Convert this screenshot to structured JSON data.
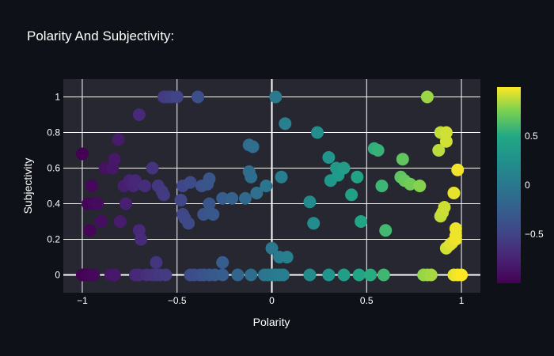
{
  "chart_data": {
    "type": "scatter",
    "title": "Polarity And Subjectivity:",
    "xlabel": "Polarity",
    "ylabel": "Subjectivity",
    "xlim": [
      -1.1,
      1.1
    ],
    "ylim": [
      -0.1,
      1.1
    ],
    "x_ticks": [
      -1,
      -0.5,
      0,
      0.5,
      1
    ],
    "x_tick_labels": [
      "−1",
      "−0.5",
      "0",
      "0.5",
      "1"
    ],
    "y_ticks": [
      0,
      0.2,
      0.4,
      0.6,
      0.8,
      1
    ],
    "y_tick_labels": [
      "0",
      "0.2",
      "0.4",
      "0.6",
      "0.8",
      "1"
    ],
    "grid": true,
    "colorscale": "viridis",
    "colorbar": {
      "range": [
        -1,
        1
      ],
      "ticks": [
        0.5,
        0,
        -0.5
      ],
      "tick_labels": [
        "0.5",
        "0",
        "−0.5"
      ]
    },
    "colors": {
      "page_bg": "#0e1117",
      "plot_bg": "#262730",
      "grid": "#ffffff",
      "text": "#ffffff"
    },
    "points": [
      [
        -1.0,
        0.68
      ],
      [
        -0.97,
        0.4
      ],
      [
        -0.96,
        0.25
      ],
      [
        -0.95,
        0.5
      ],
      [
        -0.94,
        0.4
      ],
      [
        -0.92,
        0.4
      ],
      [
        -0.9,
        0.3
      ],
      [
        -0.88,
        0.6
      ],
      [
        -0.84,
        0.6
      ],
      [
        -0.83,
        0.65
      ],
      [
        -0.81,
        0.76
      ],
      [
        -0.8,
        0.3
      ],
      [
        -0.78,
        0.5
      ],
      [
        -0.77,
        0.4
      ],
      [
        -0.75,
        0.53
      ],
      [
        -0.73,
        0.5
      ],
      [
        -0.72,
        0.53
      ],
      [
        -0.7,
        0.9
      ],
      [
        -0.7,
        0.25
      ],
      [
        -0.69,
        0.2
      ],
      [
        -0.67,
        0.5
      ],
      [
        -0.63,
        0.6
      ],
      [
        -0.61,
        0.07
      ],
      [
        -0.6,
        0.5
      ],
      [
        -0.58,
        0.47
      ],
      [
        -0.57,
        0.45
      ],
      [
        -0.57,
        1.0
      ],
      [
        -0.55,
        1.0
      ],
      [
        -0.53,
        1.0
      ],
      [
        -0.5,
        1.0
      ],
      [
        -0.48,
        0.42
      ],
      [
        -0.47,
        0.5
      ],
      [
        -0.47,
        0.34
      ],
      [
        -0.46,
        0.32
      ],
      [
        -0.44,
        0.29
      ],
      [
        -0.43,
        0.52
      ],
      [
        -0.39,
        1.0
      ],
      [
        -0.37,
        0.5
      ],
      [
        -0.36,
        0.34
      ],
      [
        -0.34,
        0.51
      ],
      [
        -0.33,
        0.35
      ],
      [
        -0.33,
        0.4
      ],
      [
        -0.33,
        0.54
      ],
      [
        -0.31,
        0.34
      ],
      [
        -0.26,
        0.07
      ],
      [
        -0.26,
        0.43
      ],
      [
        -0.21,
        0.43
      ],
      [
        -0.14,
        0.43
      ],
      [
        -0.08,
        0.46
      ],
      [
        -0.12,
        0.58
      ],
      [
        -0.12,
        0.73
      ],
      [
        -0.11,
        0.55
      ],
      [
        -0.1,
        0.72
      ],
      [
        -0.03,
        0.5
      ],
      [
        0.0,
        0.15
      ],
      [
        0.02,
        1.0
      ],
      [
        0.04,
        0.1
      ],
      [
        0.05,
        0.55
      ],
      [
        0.07,
        0.85
      ],
      [
        0.08,
        0.1
      ],
      [
        0.2,
        0.41
      ],
      [
        0.22,
        0.29
      ],
      [
        0.24,
        0.8
      ],
      [
        0.3,
        0.66
      ],
      [
        0.31,
        0.53
      ],
      [
        0.34,
        0.6
      ],
      [
        0.35,
        0.56
      ],
      [
        0.38,
        0.6
      ],
      [
        0.42,
        0.45
      ],
      [
        0.45,
        0.55
      ],
      [
        0.47,
        0.3
      ],
      [
        0.54,
        0.71
      ],
      [
        0.56,
        0.7
      ],
      [
        0.58,
        0.5
      ],
      [
        0.6,
        0.25
      ],
      [
        0.68,
        0.55
      ],
      [
        0.69,
        0.65
      ],
      [
        0.7,
        0.53
      ],
      [
        0.73,
        0.51
      ],
      [
        0.78,
        0.5
      ],
      [
        0.82,
        1.0
      ],
      [
        0.88,
        0.7
      ],
      [
        0.89,
        0.8
      ],
      [
        0.89,
        0.33
      ],
      [
        0.9,
        0.35
      ],
      [
        0.91,
        0.38
      ],
      [
        0.92,
        0.75
      ],
      [
        0.92,
        0.8
      ],
      [
        0.92,
        0.15
      ],
      [
        0.94,
        0.17
      ],
      [
        0.95,
        0.18
      ],
      [
        0.96,
        0.46
      ],
      [
        0.97,
        0.2
      ],
      [
        0.97,
        0.22
      ],
      [
        0.97,
        0.26
      ],
      [
        0.98,
        0.59
      ],
      [
        -1.0,
        0.0
      ],
      [
        -0.98,
        0.0
      ],
      [
        -0.96,
        0.0
      ],
      [
        -0.94,
        0.0
      ],
      [
        -0.85,
        0.0
      ],
      [
        -0.83,
        0.0
      ],
      [
        -0.72,
        0.0
      ],
      [
        -0.7,
        0.0
      ],
      [
        -0.66,
        0.0
      ],
      [
        -0.63,
        0.0
      ],
      [
        -0.61,
        0.0
      ],
      [
        -0.59,
        0.0
      ],
      [
        -0.56,
        0.0
      ],
      [
        -0.43,
        0.0
      ],
      [
        -0.41,
        0.0
      ],
      [
        -0.38,
        0.0
      ],
      [
        -0.36,
        0.0
      ],
      [
        -0.33,
        0.0
      ],
      [
        -0.3,
        0.0
      ],
      [
        -0.26,
        0.0
      ],
      [
        -0.18,
        0.0
      ],
      [
        -0.11,
        0.0
      ],
      [
        -0.04,
        0.0
      ],
      [
        -0.02,
        0.0
      ],
      [
        0.0,
        0.0
      ],
      [
        0.02,
        0.0
      ],
      [
        0.04,
        0.0
      ],
      [
        0.06,
        0.0
      ],
      [
        0.2,
        0.0
      ],
      [
        0.3,
        0.0
      ],
      [
        0.38,
        0.0
      ],
      [
        0.46,
        0.0
      ],
      [
        0.52,
        0.0
      ],
      [
        0.59,
        0.0
      ],
      [
        0.8,
        0.0
      ],
      [
        0.82,
        0.0
      ],
      [
        0.84,
        0.0
      ],
      [
        0.96,
        0.0
      ],
      [
        0.98,
        0.0
      ],
      [
        1.0,
        0.0
      ]
    ]
  }
}
